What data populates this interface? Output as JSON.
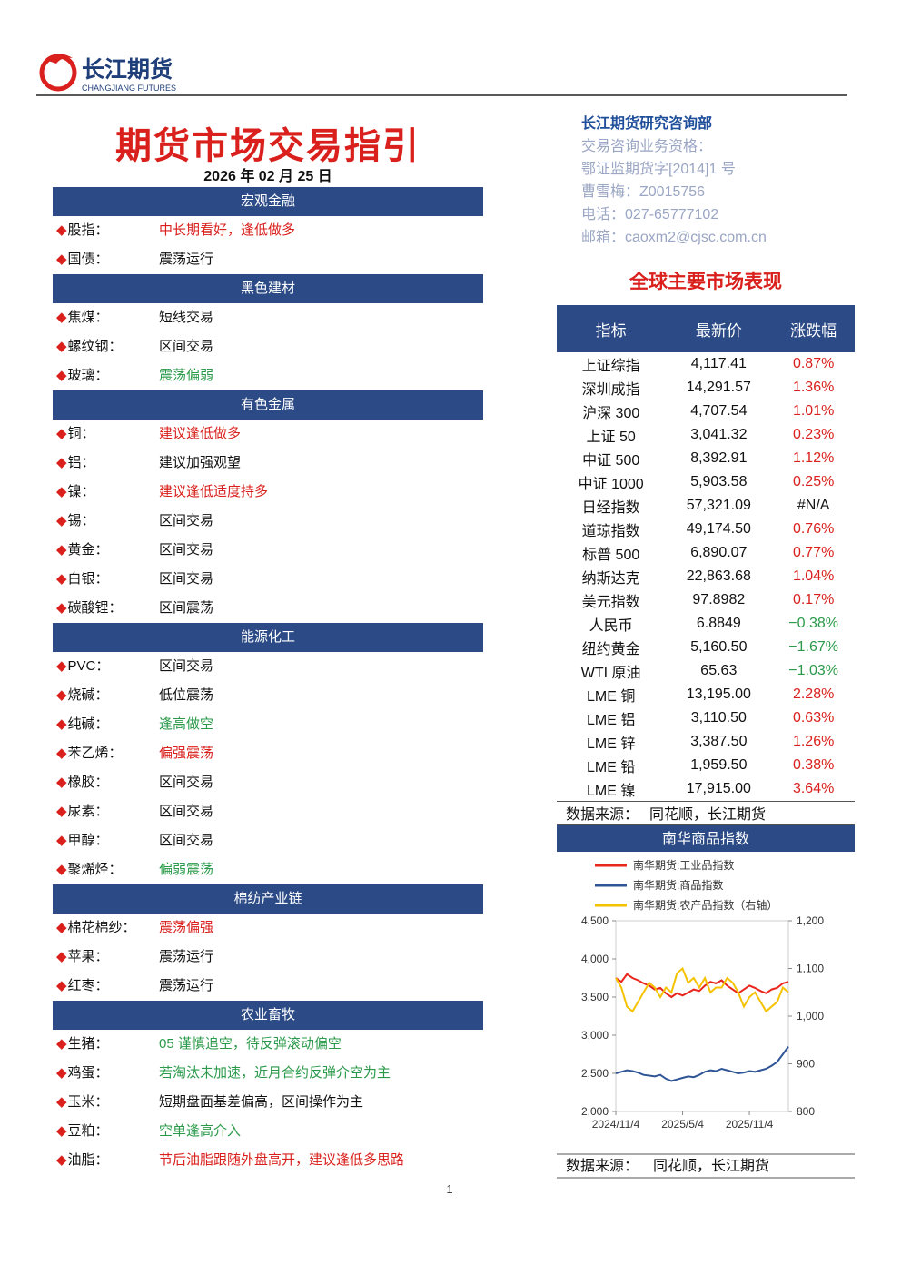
{
  "header": {
    "brand": "长江期货",
    "brand_en": "CHANGJIANG FUTURES"
  },
  "title": "期货市场交易指引",
  "date": "2026 年 02 月 25 日",
  "sections": [
    {
      "title": "宏观金融",
      "items": [
        {
          "name": "股指：",
          "view": "中长期看好，逢低做多",
          "color": "#d9201c"
        },
        {
          "name": "国债：",
          "view": "震荡运行",
          "color": "#111111"
        }
      ]
    },
    {
      "title": "黑色建材",
      "items": [
        {
          "name": "焦煤：",
          "view": "短线交易",
          "color": "#111111"
        },
        {
          "name": "螺纹钢：",
          "view": "区间交易",
          "color": "#111111"
        },
        {
          "name": "玻璃：",
          "view": "震荡偏弱",
          "color": "#2a9a4a"
        }
      ]
    },
    {
      "title": "有色金属",
      "items": [
        {
          "name": "铜：",
          "view": "建议逢低做多",
          "color": "#d9201c"
        },
        {
          "name": "铝：",
          "view": "建议加强观望",
          "color": "#111111"
        },
        {
          "name": "镍：",
          "view": "建议逢低适度持多",
          "color": "#d9201c"
        },
        {
          "name": "锡：",
          "view": "区间交易",
          "color": "#111111"
        },
        {
          "name": "黄金：",
          "view": "区间交易",
          "color": "#111111"
        },
        {
          "name": "白银：",
          "view": "区间交易",
          "color": "#111111"
        },
        {
          "name": "碳酸锂：",
          "view": "区间震荡",
          "color": "#111111"
        }
      ]
    },
    {
      "title": "能源化工",
      "items": [
        {
          "name": "PVC：",
          "view": "区间交易",
          "color": "#111111"
        },
        {
          "name": "烧碱：",
          "view": "低位震荡",
          "color": "#111111"
        },
        {
          "name": "纯碱：",
          "view": "逢高做空",
          "color": "#2a9a4a"
        },
        {
          "name": "苯乙烯：",
          "view": "偏强震荡",
          "color": "#d9201c"
        },
        {
          "name": "橡胶：",
          "view": "区间交易",
          "color": "#111111"
        },
        {
          "name": "尿素：",
          "view": "区间交易",
          "color": "#111111"
        },
        {
          "name": "甲醇：",
          "view": "区间交易",
          "color": "#111111"
        },
        {
          "name": "聚烯烃：",
          "view": "偏弱震荡",
          "color": "#2a9a4a"
        }
      ]
    },
    {
      "title": "棉纺产业链",
      "items": [
        {
          "name": "棉花棉纱：",
          "view": "震荡偏强",
          "color": "#d9201c"
        },
        {
          "name": "苹果：",
          "view": "震荡运行",
          "color": "#111111"
        },
        {
          "name": "红枣：",
          "view": "震荡运行",
          "color": "#111111"
        }
      ]
    },
    {
      "title": "农业畜牧",
      "items": [
        {
          "name": "生猪：",
          "view": "05 谨慎追空，待反弹滚动偏空",
          "color": "#2a9a4a"
        },
        {
          "name": "鸡蛋：",
          "view": "若淘汰未加速，近月合约反弹介空为主",
          "color": "#2a9a4a"
        },
        {
          "name": "玉米：",
          "view": "短期盘面基差偏高，区间操作为主",
          "color": "#111111"
        },
        {
          "name": "豆粕：",
          "view": "空单逢高介入",
          "color": "#2a9a4a"
        },
        {
          "name": "油脂：",
          "view": "节后油脂跟随外盘高开，建议逢低多思路",
          "color": "#d9201c"
        }
      ]
    }
  ],
  "dept": [
    "长江期货研究咨询部",
    "交易咨询业务资格：",
    "鄂证监期货字[2014]1 号",
    "曹雪梅：Z0015756",
    "电话：027-65777102",
    "邮箱：caoxm2@cjsc.com.cn"
  ],
  "market": {
    "title": "全球主要市场表现",
    "columns": [
      "指标",
      "最新价",
      "涨跌幅"
    ],
    "rows": [
      [
        "上证综指",
        "4,117.41",
        "0.87%"
      ],
      [
        "深圳成指",
        "14,291.57",
        "1.36%"
      ],
      [
        "沪深 300",
        "4,707.54",
        "1.01%"
      ],
      [
        "上证 50",
        "3,041.32",
        "0.23%"
      ],
      [
        "中证 500",
        "8,392.91",
        "1.12%"
      ],
      [
        "中证 1000",
        "5,903.58",
        "0.25%"
      ],
      [
        "日经指数",
        "57,321.09",
        "#N/A"
      ],
      [
        "道琼指数",
        "49,174.50",
        "0.76%"
      ],
      [
        "标普 500",
        "6,890.07",
        "0.77%"
      ],
      [
        "纳斯达克",
        "22,863.68",
        "1.04%"
      ],
      [
        "美元指数",
        "97.8982",
        "0.17%"
      ],
      [
        "人民币",
        "6.8849",
        "−0.38%"
      ],
      [
        "纽约黄金",
        "5,160.50",
        "−1.67%"
      ],
      [
        "WTI 原油",
        "65.63",
        "−1.03%"
      ],
      [
        "LME 铜",
        "13,195.00",
        "2.28%"
      ],
      [
        "LME 铝",
        "3,110.50",
        "0.63%"
      ],
      [
        "LME 锌",
        "3,387.50",
        "1.26%"
      ],
      [
        "LME 铅",
        "1,959.50",
        "0.38%"
      ],
      [
        "LME 镍",
        "17,915.00",
        "3.64%"
      ]
    ],
    "source": {
      "label": "数据来源：",
      "text": "同花顺，长江期货"
    }
  },
  "chart_data": {
    "type": "line",
    "title": "南华商品指数",
    "x": [
      "2024/11/4",
      "2024/11/18",
      "2024/12/4",
      "2024/12/18",
      "2025/1/4",
      "2025/1/18",
      "2025/2/4",
      "2025/2/18",
      "2025/3/4",
      "2025/3/18",
      "2025/4/4",
      "2025/4/18",
      "2025/5/4",
      "2025/5/18",
      "2025/6/4",
      "2025/6/18",
      "2025/7/4",
      "2025/7/18",
      "2025/8/4",
      "2025/8/18",
      "2025/9/4",
      "2025/9/18",
      "2025/10/4",
      "2025/10/18",
      "2025/11/4",
      "2025/11/18",
      "2025/12/4",
      "2025/12/18",
      "2026/1/4",
      "2026/1/18",
      "2026/2/4",
      "2026/2/18"
    ],
    "xticks": [
      "2024/11/4",
      "2025/5/4",
      "2025/11/4"
    ],
    "ylim": [
      2000,
      4500
    ],
    "yticks": [
      {
        "value": 2000,
        "label": "2,000"
      },
      {
        "value": 2500,
        "label": "2,500"
      },
      {
        "value": 3000,
        "label": "3,000"
      },
      {
        "value": 3500,
        "label": "3,500"
      },
      {
        "value": 4000,
        "label": "4,000"
      },
      {
        "value": 4500,
        "label": "4,500"
      }
    ],
    "y2lim": [
      800,
      1200
    ],
    "y2ticks": [
      800,
      900,
      {
        "value": 1000,
        "label": "1,000"
      },
      {
        "value": 1100,
        "label": "1,100"
      },
      {
        "value": 1200,
        "label": "1,200"
      }
    ],
    "series": [
      {
        "name": "南华期货:工业品指数",
        "color": "#e8261c",
        "values": [
          3750,
          3700,
          3800,
          3750,
          3720,
          3680,
          3650,
          3600,
          3620,
          3550,
          3500,
          3550,
          3520,
          3560,
          3600,
          3580,
          3650,
          3700,
          3680,
          3720,
          3650,
          3600,
          3550,
          3600,
          3650,
          3620,
          3580,
          3550,
          3600,
          3620,
          3680,
          3700
        ]
      },
      {
        "name": "南华期货:商品指数",
        "color": "#2f5597",
        "values": [
          2500,
          2520,
          2540,
          2530,
          2510,
          2480,
          2470,
          2460,
          2480,
          2430,
          2400,
          2420,
          2440,
          2460,
          2450,
          2480,
          2520,
          2540,
          2530,
          2560,
          2540,
          2520,
          2500,
          2510,
          2530,
          2520,
          2540,
          2560,
          2600,
          2650,
          2750,
          2850
        ]
      },
      {
        "name": "南华期货:农产品指数（右轴）",
        "color": "#f5c200",
        "axis": "y2",
        "values": [
          1080,
          1060,
          1020,
          1010,
          1030,
          1050,
          1070,
          1060,
          1040,
          1060,
          1050,
          1090,
          1100,
          1070,
          1080,
          1060,
          1080,
          1050,
          1060,
          1060,
          1080,
          1070,
          1050,
          1020,
          1040,
          1050,
          1030,
          1010,
          1020,
          1030,
          1060,
          1050
        ]
      }
    ],
    "source": {
      "label": "数据来源：",
      "text": "同花顺，长江期货"
    }
  },
  "page_number": "1"
}
